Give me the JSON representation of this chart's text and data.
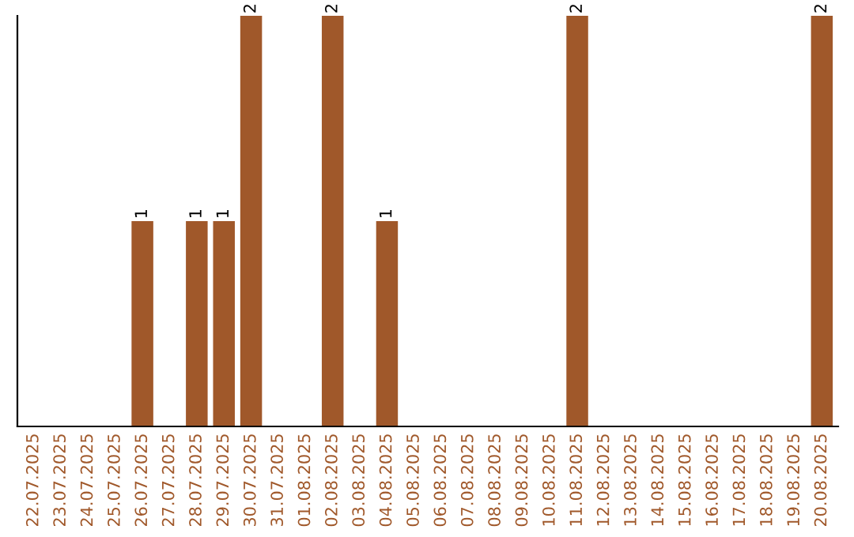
{
  "chart_data": {
    "type": "bar",
    "categories": [
      "22.07.2025",
      "23.07.2025",
      "24.07.2025",
      "25.07.2025",
      "26.07.2025",
      "27.07.2025",
      "28.07.2025",
      "29.07.2025",
      "30.07.2025",
      "31.07.2025",
      "01.08.2025",
      "02.08.2025",
      "03.08.2025",
      "04.08.2025",
      "05.08.2025",
      "06.08.2025",
      "07.08.2025",
      "08.08.2025",
      "09.08.2025",
      "10.08.2025",
      "11.08.2025",
      "12.08.2025",
      "13.08.2025",
      "14.08.2025",
      "15.08.2025",
      "16.08.2025",
      "17.08.2025",
      "18.08.2025",
      "19.08.2025",
      "20.08.2025"
    ],
    "values": [
      0,
      0,
      0,
      0,
      1,
      0,
      1,
      1,
      2,
      0,
      0,
      2,
      0,
      1,
      0,
      0,
      0,
      0,
      0,
      0,
      2,
      0,
      0,
      0,
      0,
      0,
      0,
      0,
      0,
      2
    ],
    "color": "#a0582a",
    "ylim": [
      0,
      2
    ],
    "tick_labels": "x",
    "value_labels": [
      null,
      null,
      null,
      null,
      "1",
      null,
      "1",
      "1",
      "2",
      null,
      null,
      "2",
      null,
      "1",
      null,
      null,
      null,
      null,
      null,
      null,
      "2",
      null,
      null,
      null,
      null,
      null,
      null,
      null,
      null,
      "2"
    ]
  }
}
